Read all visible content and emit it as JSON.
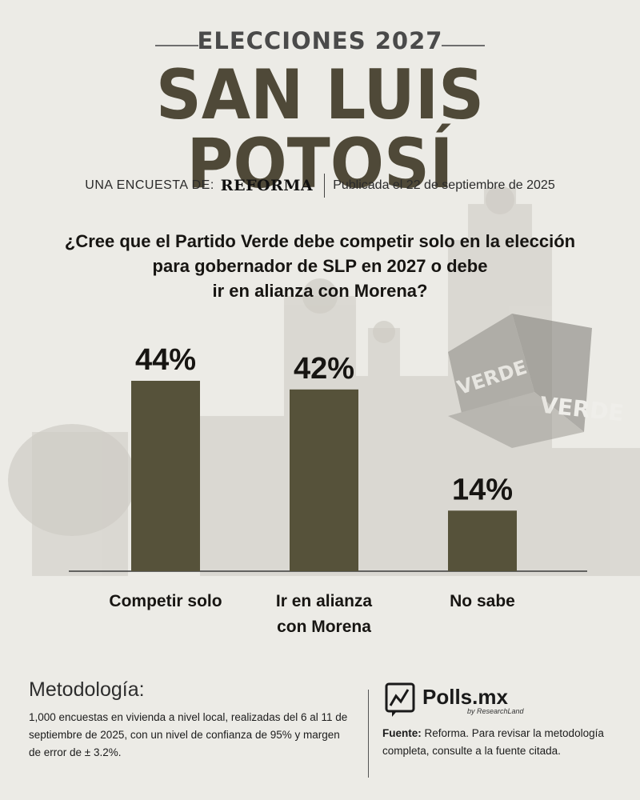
{
  "header": {
    "kicker": "ELECCIONES 2027",
    "title": "SAN LUIS POTOSÍ"
  },
  "credit": {
    "label": "UNA ENCUESTA DE:",
    "brand": "REFORMA",
    "published": "Publicada el 22 de septiembre de 2025"
  },
  "background": {
    "logo_text_a": "VERDE",
    "logo_text_b": "VERDE"
  },
  "chart_data": {
    "type": "bar",
    "title": "¿Cree que el Partido Verde debe competir solo en la elección para gobernador de SLP en 2027 o debe ir en alianza con Morena?",
    "title_lines": [
      "¿Cree que el Partido Verde debe competir solo en la elección",
      "para gobernador de SLP en 2027 o debe",
      "ir en alianza con Morena?"
    ],
    "categories": [
      "Competir solo",
      "Ir en alianza con Morena",
      "No sabe"
    ],
    "category_lines": [
      [
        "Competir solo"
      ],
      [
        "Ir en alianza",
        "con Morena"
      ],
      [
        "No sabe"
      ]
    ],
    "values": [
      44,
      42,
      14
    ],
    "value_labels": [
      "44%",
      "42%",
      "14%"
    ],
    "unit": "%",
    "bar_color": "#56523a",
    "ylim": [
      0,
      44
    ],
    "grid": false,
    "legend": "none"
  },
  "methodology": {
    "title": "Metodología:",
    "text": "1,000 encuestas en vivienda a nivel local, realizadas del 6 al 11 de septiembre de 2025, con un nivel de confianza de 95% y margen de error de ± 3.2%."
  },
  "footer": {
    "logo_name": "Polls.mx",
    "logo_sub": "by ResearchLand",
    "source_label": "Fuente:",
    "source_text": " Reforma. Para revisar la metodología completa, consulte a la fuente citada."
  },
  "colors": {
    "background": "#ecebe6",
    "title": "#4f4938",
    "bar": "#56523a",
    "text": "#171512"
  }
}
